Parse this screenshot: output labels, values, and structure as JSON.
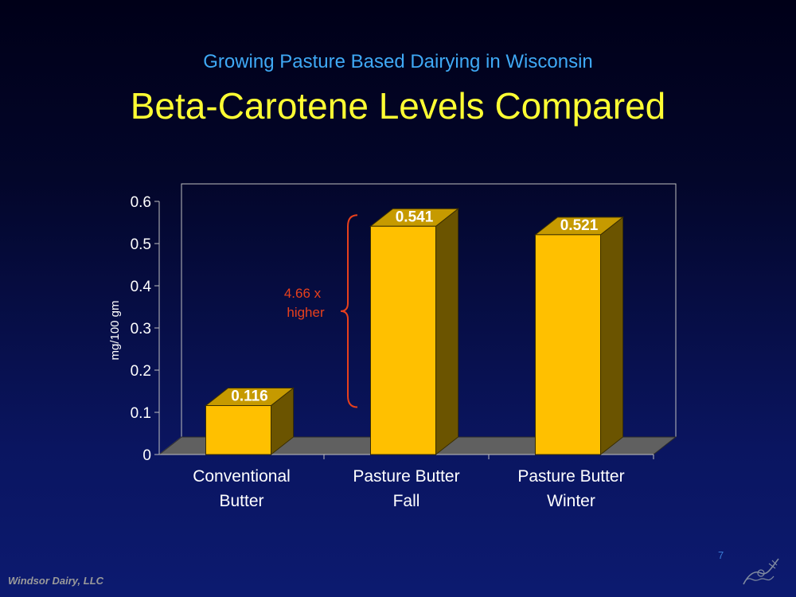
{
  "slide": {
    "subtitle": "Growing Pasture Based Dairying in Wisconsin",
    "title": "Beta-Carotene Levels Compared",
    "footer": "Windsor Dairy, LLC",
    "page_number": "7"
  },
  "colors": {
    "bar_front": "#FFC000",
    "bar_side": "#6B5400",
    "bar_top": "#C69A00",
    "floor": "#606060",
    "annotation": "#e8401c",
    "text": "#ffffff"
  },
  "chart_data": {
    "type": "bar",
    "style": "3d",
    "categories": [
      [
        "Conventional",
        "Butter"
      ],
      [
        "Pasture Butter",
        "Fall"
      ],
      [
        "Pasture Butter",
        "Winter"
      ]
    ],
    "values": [
      0.116,
      0.541,
      0.521
    ],
    "data_labels": [
      "0.116",
      "0.541",
      "0.521"
    ],
    "ylabel": "mg/100 gm",
    "ylim": [
      0,
      0.6
    ],
    "yticks": [
      "0",
      "0.1",
      "0.2",
      "0.3",
      "0.4",
      "0.5",
      "0.6"
    ],
    "annotation": {
      "lines": [
        "4.66 x",
        "higher"
      ]
    },
    "grid": false
  }
}
